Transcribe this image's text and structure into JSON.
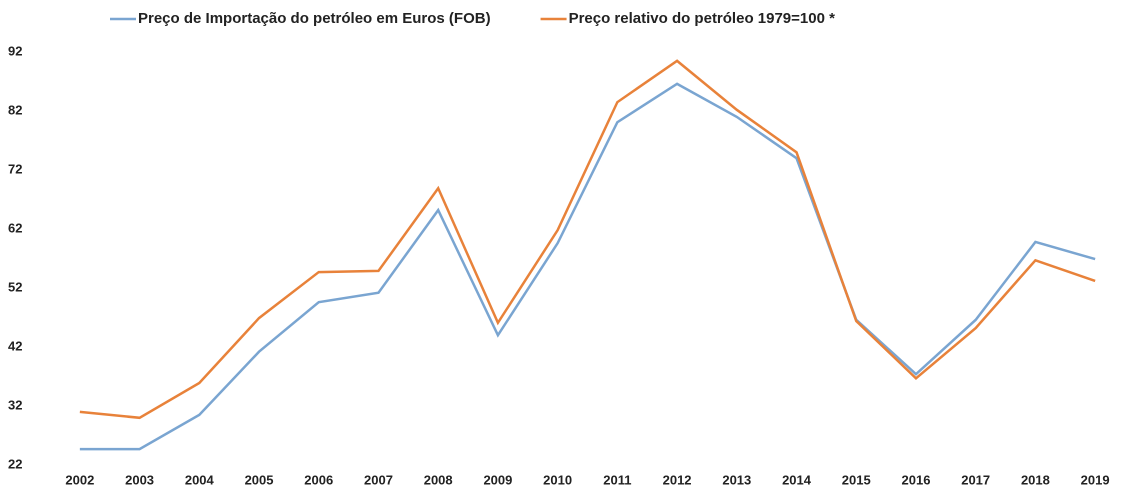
{
  "chart_data": {
    "type": "line",
    "categories": [
      "2002",
      "2003",
      "2004",
      "2005",
      "2006",
      "2007",
      "2008",
      "2009",
      "2010",
      "2011",
      "2012",
      "2013",
      "2014",
      "2015",
      "2016",
      "2017",
      "2018",
      "2019"
    ],
    "series": [
      {
        "name": "Preço de Importação do petróleo em Euros (FOB)",
        "color": "#7aa5d1",
        "values": [
          24.7,
          24.7,
          30.5,
          41.2,
          49.6,
          51.2,
          65.2,
          44.0,
          59.6,
          80.1,
          86.6,
          81.0,
          74.0,
          46.6,
          37.4,
          46.6,
          59.8,
          56.9
        ]
      },
      {
        "name": "Preço relativo do petróleo 1979=100 *",
        "color": "#e8823a",
        "values": [
          31.0,
          30.0,
          35.9,
          46.9,
          54.7,
          54.9,
          68.9,
          46.1,
          61.8,
          83.5,
          90.5,
          82.2,
          75.0,
          46.4,
          36.7,
          45.2,
          56.7,
          53.2
        ]
      }
    ],
    "ylim": [
      22,
      92
    ],
    "yticks": [
      22,
      32,
      42,
      52,
      62,
      72,
      82,
      92
    ],
    "grid": false
  }
}
